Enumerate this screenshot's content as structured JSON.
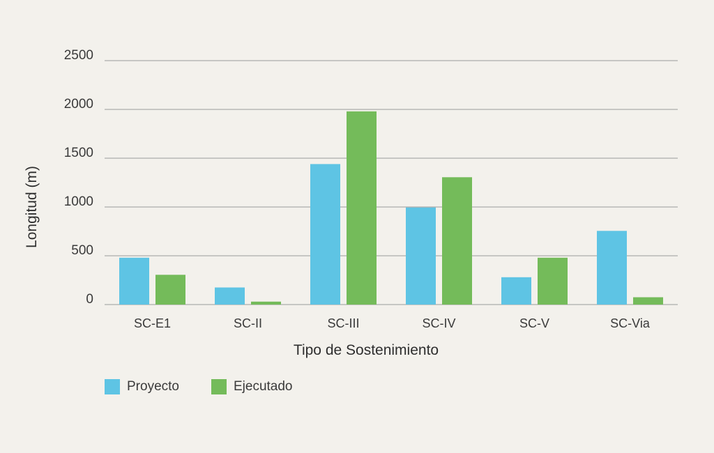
{
  "chart_data": {
    "type": "bar",
    "title": "",
    "xlabel": "Tipo de Sostenimiento",
    "ylabel": "Longitud (m)",
    "categories": [
      "SC-E1",
      "SC-II",
      "SC-III",
      "SC-IV",
      "SC-V",
      "SC-Via"
    ],
    "series": [
      {
        "name": "Proyecto",
        "color": "#5ec4e4",
        "values": [
          480,
          175,
          1440,
          995,
          280,
          755
        ]
      },
      {
        "name": "Ejecutado",
        "color": "#74bb5a",
        "values": [
          305,
          30,
          1980,
          1305,
          480,
          75
        ]
      }
    ],
    "ylim": [
      0,
      2500
    ],
    "yticks": [
      0,
      500,
      1000,
      1500,
      2000,
      2500
    ],
    "grid": true,
    "legend_position": "bottom-left"
  }
}
